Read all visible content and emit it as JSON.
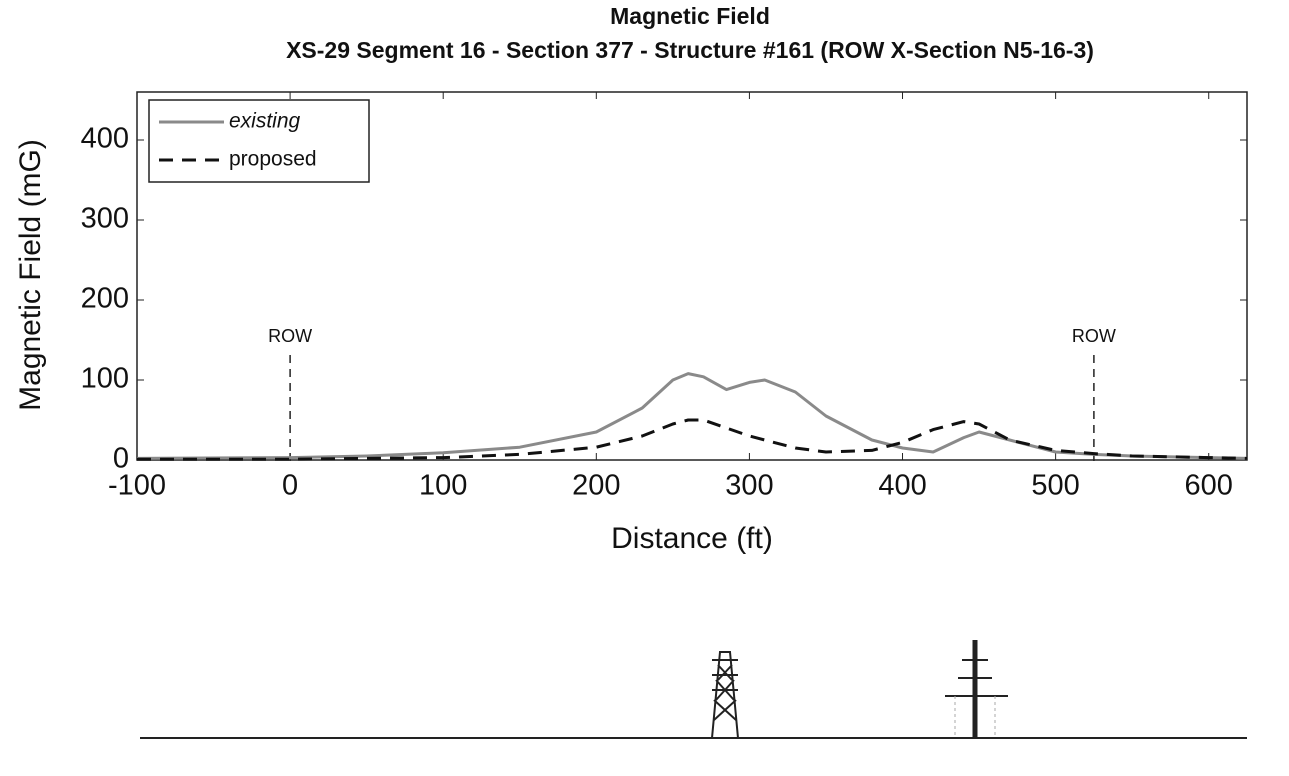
{
  "chart_data": {
    "type": "line",
    "title": "Magnetic Field",
    "subtitle": "XS-29 Segment 16 - Section 377 - Structure #161 (ROW X-Section N5-16-3)",
    "x_label": "Distance (ft)",
    "y_label": "Magnetic Field (mG)",
    "x": [
      -100,
      0,
      50,
      100,
      150,
      200,
      230,
      250,
      260,
      270,
      285,
      300,
      310,
      330,
      350,
      380,
      400,
      420,
      440,
      450,
      470,
      500,
      525,
      550,
      600,
      625
    ],
    "series": [
      {
        "name": "existing",
        "color": "#8a8a8a",
        "style": "solid",
        "values": [
          2,
          3,
          5,
          9,
          16,
          35,
          65,
          100,
          108,
          104,
          88,
          97,
          100,
          85,
          55,
          25,
          15,
          10,
          28,
          35,
          25,
          10,
          7,
          5,
          3,
          2
        ]
      },
      {
        "name": "proposed",
        "color": "#111111",
        "style": "dashed",
        "values": [
          1,
          1,
          2,
          3,
          7,
          16,
          30,
          45,
          50,
          50,
          40,
          30,
          25,
          15,
          10,
          12,
          22,
          38,
          48,
          45,
          25,
          12,
          8,
          5,
          3,
          2
        ]
      }
    ],
    "annotations": [
      {
        "text": "ROW",
        "x": 0
      },
      {
        "text": "ROW",
        "x": 525
      }
    ],
    "xlim": [
      -100,
      625
    ],
    "xticks": [
      -100,
      0,
      100,
      200,
      300,
      400,
      500,
      600
    ],
    "ylim": [
      0,
      460
    ],
    "yticks": [
      0,
      100,
      200,
      300,
      400
    ],
    "legend": "top-left",
    "grid": false
  }
}
